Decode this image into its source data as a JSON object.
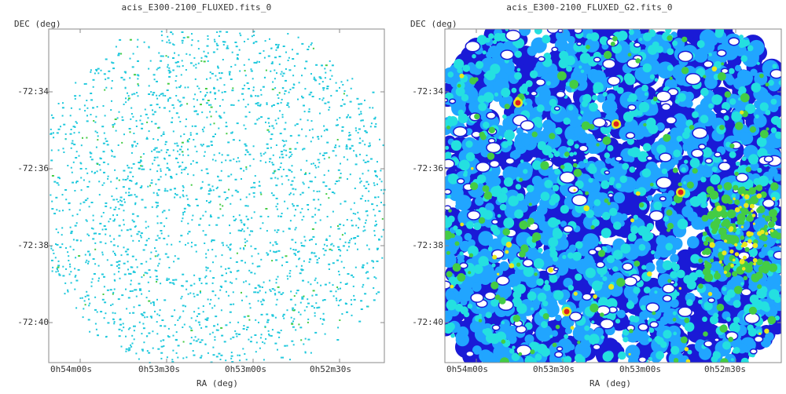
{
  "panels": [
    {
      "title": "acis_E300-2100_FLUXED.fits_0",
      "ylabel": "DEC (deg)",
      "xlabel": "RA (deg)",
      "yticks": [
        "-72:34",
        "-72:36",
        "-72:38",
        "-72:40"
      ],
      "xticks": [
        "0h54m00s",
        "0h53m30s",
        "0h53m00s",
        "0h52m30s"
      ]
    },
    {
      "title": "acis_E300-2100_FLUXED_G2.fits_0",
      "ylabel": "DEC (deg)",
      "xlabel": "RA (deg)",
      "yticks": [
        "-72:34",
        "-72:36",
        "-72:38",
        "-72:40"
      ],
      "xticks": [
        "0h54m00s",
        "0h53m30s",
        "0h53m00s",
        "0h52m30s"
      ]
    }
  ],
  "colors": {
    "frame": "#777777",
    "cyan": "#1ec8dc",
    "green": "#44cc44",
    "blue": "#1a1ad6",
    "lightblue": "#21a5ff",
    "yellow": "#e8e820",
    "red": "#dd2020"
  }
}
